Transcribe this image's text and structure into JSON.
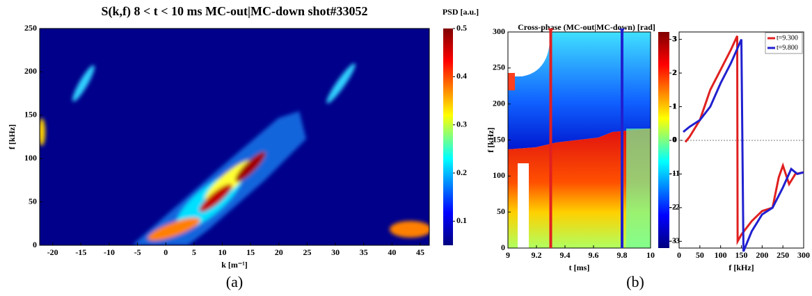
{
  "chart_data": [
    {
      "type": "heatmap",
      "title": "S(k,f)   8 < t < 10 ms   MC-out|MC-down   shot#33052",
      "xlabel": "k [m⁻¹]",
      "ylabel": "f [kHz]",
      "xlim": [
        -22.3,
        46.6
      ],
      "xticks": [
        -20,
        -15,
        -10,
        -5,
        0,
        5,
        10,
        15,
        20,
        25,
        30,
        35,
        40,
        45
      ],
      "ylim": [
        0,
        250
      ],
      "yticks": [
        0,
        50,
        100,
        150,
        200,
        250
      ],
      "colorbar": {
        "label": "PSD [a.u.]",
        "lim": [
          0.05,
          0.5
        ],
        "ticks": [
          0.1,
          0.2,
          0.3,
          0.4,
          0.5
        ]
      },
      "caption": "(a)"
    },
    {
      "type": "heatmap",
      "title": "Cross-phase (MC-out|MC-down) [rad]",
      "xlabel": "t [ms]",
      "ylabel": "f [kHz]",
      "xlim": [
        9,
        10
      ],
      "xticks": [
        9,
        9.2,
        9.4,
        9.6,
        9.8,
        10
      ],
      "ylim": [
        0,
        300
      ],
      "yticks": [
        0,
        50,
        100,
        150,
        200,
        250,
        300
      ],
      "markers": [
        {
          "value": 9.3,
          "color": "#e02020"
        },
        {
          "value": 9.8,
          "color": "#2020d0"
        }
      ],
      "colorbar": {
        "lim": [
          -3.2,
          3.22
        ],
        "ticks": [
          -3,
          -2,
          -1,
          0,
          1,
          2,
          3
        ]
      },
      "caption": "(b)"
    },
    {
      "type": "line",
      "xlabel": "f [kHz]",
      "xlim": [
        0,
        300
      ],
      "xticks": [
        0,
        50,
        100,
        150,
        200,
        250,
        300
      ],
      "ylim": [
        -3.2,
        3.22
      ],
      "yticks": [
        -3,
        -2,
        -1,
        0,
        1,
        2,
        3
      ],
      "zero_line": true,
      "legend": "upper right",
      "series": [
        {
          "name": "t=9.300",
          "color": "#e02020",
          "x": [
            15,
            25,
            50,
            75,
            100,
            125,
            140,
            141,
            150,
            175,
            200,
            225,
            240,
            250,
            265,
            280,
            300
          ],
          "values": [
            -0.05,
            0.1,
            0.6,
            1.5,
            2.1,
            2.7,
            3.1,
            -3.0,
            -2.8,
            -2.4,
            -2.1,
            -2.0,
            -1.1,
            -0.75,
            -1.3,
            -1.0,
            -0.95
          ]
        },
        {
          "name": "t=9.800",
          "color": "#2020d0",
          "x": [
            10,
            25,
            50,
            75,
            100,
            125,
            150,
            155,
            175,
            200,
            225,
            250,
            270,
            285,
            300
          ],
          "values": [
            0.25,
            0.4,
            0.6,
            1.0,
            1.7,
            2.3,
            3.0,
            -3.3,
            -2.7,
            -2.2,
            -2.0,
            -1.4,
            -0.85,
            -1.0,
            -0.95
          ]
        }
      ]
    }
  ]
}
